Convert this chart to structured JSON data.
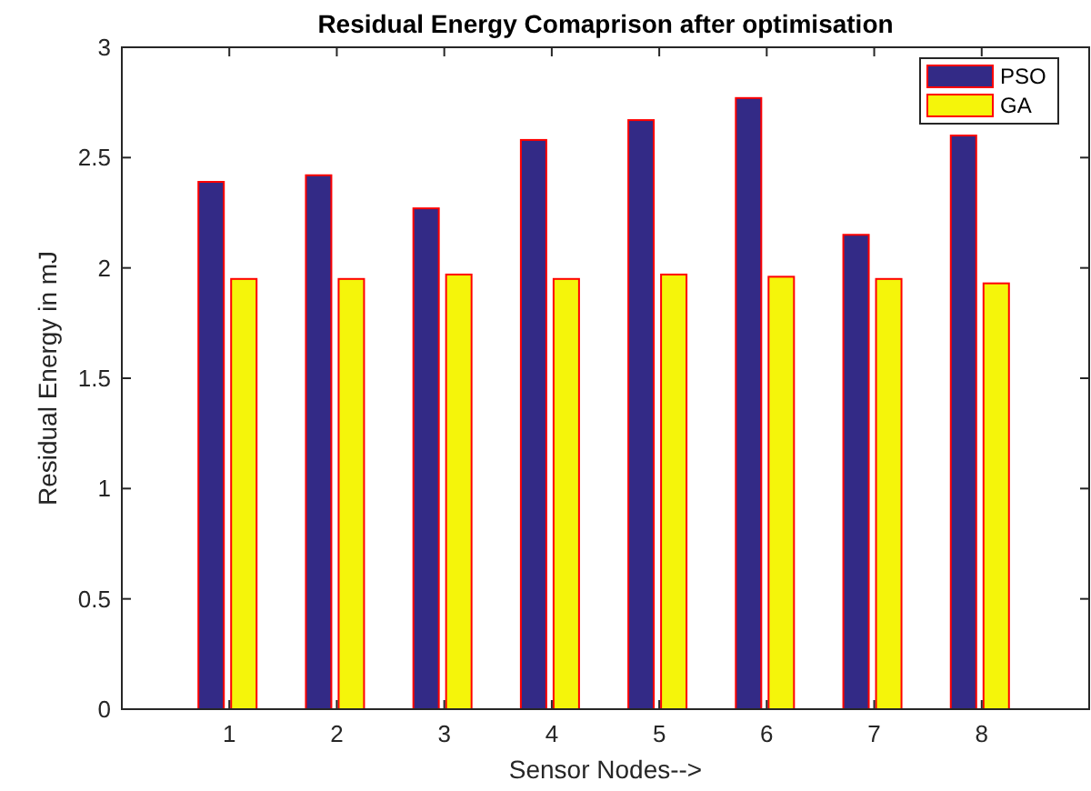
{
  "chart_data": {
    "type": "bar",
    "title": "Residual Energy Comaprison after optimisation",
    "xlabel": "Sensor Nodes-->",
    "ylabel": "Residual Energy in mJ",
    "categories": [
      "1",
      "2",
      "3",
      "4",
      "5",
      "6",
      "7",
      "8"
    ],
    "series": [
      {
        "name": "PSO",
        "color": "#332a86",
        "values": [
          2.39,
          2.42,
          2.27,
          2.58,
          2.67,
          2.77,
          2.15,
          2.6
        ]
      },
      {
        "name": "GA",
        "color": "#f5f50a",
        "values": [
          1.95,
          1.95,
          1.97,
          1.95,
          1.97,
          1.96,
          1.95,
          1.93
        ]
      }
    ],
    "ylim": [
      0,
      3
    ],
    "yticks": [
      0,
      0.5,
      1,
      1.5,
      2,
      2.5,
      3
    ],
    "legend": "top right"
  }
}
